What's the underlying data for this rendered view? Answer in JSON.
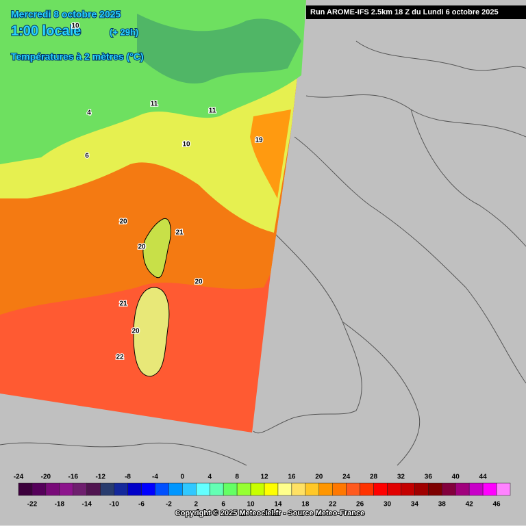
{
  "header": {
    "date": "Mercredi 8 octobre 2025",
    "time": "1:00 locale",
    "lead": "(+ 29h)",
    "field": "Températures à 2 mètres (°C)",
    "run": "Run AROME-IFS 2.5km 18 Z du Lundi 6 octobre 2025"
  },
  "map": {
    "labels": [
      "20",
      "21",
      "20",
      "21",
      "22",
      "20",
      "19",
      "10",
      "11",
      "20",
      "11",
      "10",
      "4",
      "6"
    ]
  },
  "legend": {
    "values": [
      -24,
      -22,
      -20,
      -18,
      -16,
      -14,
      -12,
      -10,
      -8,
      -6,
      -4,
      -2,
      0,
      2,
      4,
      6,
      8,
      10,
      12,
      14,
      16,
      18,
      20,
      22,
      24,
      26,
      28,
      30,
      32,
      34,
      36,
      38,
      40,
      42,
      44,
      46
    ],
    "colors": [
      "#3c003c",
      "#55005a",
      "#780a78",
      "#8c148c",
      "#6e1e6e",
      "#501450",
      "#283c6e",
      "#14289b",
      "#0000c8",
      "#0000ff",
      "#0050ff",
      "#0096ff",
      "#30c8ff",
      "#64ffff",
      "#64ffb4",
      "#64ff64",
      "#96ff32",
      "#c8ff00",
      "#ffff00",
      "#ffff8c",
      "#ffe164",
      "#ffc828",
      "#ff9600",
      "#ff7800",
      "#ff5a1e",
      "#ff3200",
      "#ff0000",
      "#e10000",
      "#c30000",
      "#a00000",
      "#7d0000",
      "#82003c",
      "#a0007d",
      "#c800c8",
      "#ff00ff",
      "#ff82ff"
    ]
  },
  "footer": {
    "copyright": "Copyright © 2025 Meteociel.fr - Source Meteo-France"
  }
}
